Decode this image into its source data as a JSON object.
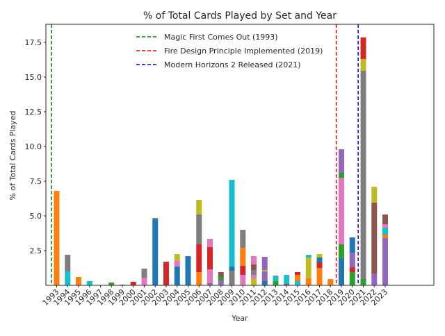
{
  "chart_data": {
    "type": "bar",
    "stacked": true,
    "title": "% of Total Cards Played by Set and Year",
    "xlabel": "Year",
    "ylabel": "% of Total Cards Played",
    "ylim": [
      0,
      18.8
    ],
    "yticks": [
      "2.5",
      "5.0",
      "7.5",
      "10.0",
      "12.5",
      "15.0",
      "17.5"
    ],
    "grid": false,
    "legend_position": "top-center",
    "categories": [
      "1993",
      "1994",
      "1995",
      "1996",
      "1997",
      "1998",
      "1999",
      "2000",
      "2001",
      "2002",
      "2003",
      "2004",
      "2005",
      "2006",
      "2007",
      "2008",
      "2009",
      "2010",
      "2011",
      "2012",
      "2013",
      "2014",
      "2015",
      "2016",
      "2017",
      "2018",
      "2019",
      "2020",
      "2021",
      "2022",
      "2023"
    ],
    "stacks": [
      [
        {
          "value": 6.8,
          "color": "#ff7f0e"
        }
      ],
      [
        {
          "value": 1.0,
          "color": "#17becf"
        },
        {
          "value": 1.2,
          "color": "#7f7f7f"
        }
      ],
      [
        {
          "value": 0.6,
          "color": "#ff7f0e"
        }
      ],
      [
        {
          "value": 0.3,
          "color": "#17becf"
        }
      ],
      [],
      [
        {
          "value": 0.2,
          "color": "#2ca02c"
        }
      ],
      [
        {
          "value": 0.05,
          "color": "#7f7f7f"
        }
      ],
      [
        {
          "value": 0.25,
          "color": "#d62728"
        }
      ],
      [
        {
          "value": 0.55,
          "color": "#e377c2"
        },
        {
          "value": 0.65,
          "color": "#7f7f7f"
        }
      ],
      [
        {
          "value": 4.75,
          "color": "#1f77b4"
        },
        {
          "value": 0.1,
          "color": "#7f7f7f"
        }
      ],
      [
        {
          "value": 1.7,
          "color": "#d62728"
        }
      ],
      [
        {
          "value": 1.35,
          "color": "#1f77b4"
        },
        {
          "value": 0.4,
          "color": "#e377c2"
        },
        {
          "value": 0.5,
          "color": "#bcbd22"
        }
      ],
      [
        {
          "value": 2.1,
          "color": "#1f77b4"
        }
      ],
      [
        {
          "value": 0.95,
          "color": "#ff7f0e"
        },
        {
          "value": 2.0,
          "color": "#d62728"
        },
        {
          "value": 2.15,
          "color": "#7f7f7f"
        },
        {
          "value": 1.05,
          "color": "#bcbd22"
        }
      ],
      [
        {
          "value": 0.15,
          "color": "#9467bd"
        },
        {
          "value": 1.0,
          "color": "#e377c2"
        },
        {
          "value": 1.6,
          "color": "#d62728"
        },
        {
          "value": 0.6,
          "color": "#e377c2"
        }
      ],
      [
        {
          "value": 0.35,
          "color": "#9467bd"
        },
        {
          "value": 0.25,
          "color": "#2ca02c"
        },
        {
          "value": 0.35,
          "color": "#8c564b"
        }
      ],
      [
        {
          "value": 1.05,
          "color": "#7f7f7f"
        },
        {
          "value": 0.3,
          "color": "#1f77b4"
        },
        {
          "value": 6.25,
          "color": "#17becf"
        }
      ],
      [
        {
          "value": 0.75,
          "color": "#e377c2"
        },
        {
          "value": 0.65,
          "color": "#d62728"
        },
        {
          "value": 1.3,
          "color": "#ff7f0e"
        },
        {
          "value": 1.3,
          "color": "#7f7f7f"
        }
      ],
      [
        {
          "value": 0.5,
          "color": "#bcbd22"
        },
        {
          "value": 0.25,
          "color": "#e377c2"
        },
        {
          "value": 0.35,
          "color": "#7f7f7f"
        },
        {
          "value": 0.4,
          "color": "#8c564b"
        },
        {
          "value": 0.6,
          "color": "#e377c2"
        }
      ],
      [
        {
          "value": 0.3,
          "color": "#1f77b4"
        },
        {
          "value": 0.7,
          "color": "#9467bd"
        },
        {
          "value": 0.1,
          "color": "#bcbd22"
        },
        {
          "value": 0.95,
          "color": "#9467bd"
        }
      ],
      [
        {
          "value": 0.3,
          "color": "#2ca02c"
        },
        {
          "value": 0.35,
          "color": "#17becf"
        },
        {
          "value": 0.05,
          "color": "#7f7f7f"
        }
      ],
      [
        {
          "value": 0.1,
          "color": "#8c564b"
        },
        {
          "value": 0.65,
          "color": "#17becf"
        }
      ],
      [
        {
          "value": 0.3,
          "color": "#17becf"
        },
        {
          "value": 0.45,
          "color": "#ff7f0e"
        },
        {
          "value": 0.2,
          "color": "#d62728"
        }
      ],
      [
        {
          "value": 0.5,
          "color": "#ff7f0e"
        },
        {
          "value": 1.5,
          "color": "#bcbd22"
        },
        {
          "value": 0.2,
          "color": "#17becf"
        }
      ],
      [
        {
          "value": 1.25,
          "color": "#ff7f0e"
        },
        {
          "value": 0.4,
          "color": "#d62728"
        },
        {
          "value": 0.35,
          "color": "#1f77b4"
        },
        {
          "value": 0.25,
          "color": "#bcbd22"
        }
      ],
      [
        {
          "value": 0.45,
          "color": "#ff7f0e"
        }
      ],
      [
        {
          "value": 1.95,
          "color": "#1f77b4"
        },
        {
          "value": 1.0,
          "color": "#2ca02c"
        },
        {
          "value": 4.8,
          "color": "#e377c2"
        },
        {
          "value": 0.35,
          "color": "#2ca02c"
        },
        {
          "value": 1.7,
          "color": "#9467bd"
        }
      ],
      [
        {
          "value": 0.95,
          "color": "#2ca02c"
        },
        {
          "value": 0.35,
          "color": "#d62728"
        },
        {
          "value": 1.05,
          "color": "#9467bd"
        },
        {
          "value": 1.1,
          "color": "#1f77b4"
        }
      ],
      [
        {
          "value": 0.45,
          "color": "#2ca02c"
        },
        {
          "value": 15.0,
          "color": "#7f7f7f"
        },
        {
          "value": 0.85,
          "color": "#bcbd22"
        },
        {
          "value": 1.55,
          "color": "#d62728"
        }
      ],
      [
        {
          "value": 0.85,
          "color": "#9467bd"
        },
        {
          "value": 5.1,
          "color": "#8c564b"
        },
        {
          "value": 1.15,
          "color": "#bcbd22"
        }
      ],
      [
        {
          "value": 3.4,
          "color": "#9467bd"
        },
        {
          "value": 0.25,
          "color": "#ff7f0e"
        },
        {
          "value": 0.5,
          "color": "#17becf"
        },
        {
          "value": 0.25,
          "color": "#e377c2"
        },
        {
          "value": 0.7,
          "color": "#8c564b"
        }
      ]
    ],
    "vlines": [
      {
        "label": "Magic First Comes Out (1993)",
        "category": "1993",
        "offset": -0.5,
        "color": "#008000"
      },
      {
        "label": "Fire Design Principle Implemented (2019)",
        "category": "2019",
        "offset": -0.5,
        "color": "#ff0000"
      },
      {
        "label": "Modern Horizons 2 Released (2021)",
        "category": "2021",
        "offset": -0.5,
        "color": "#0000cc"
      }
    ]
  }
}
